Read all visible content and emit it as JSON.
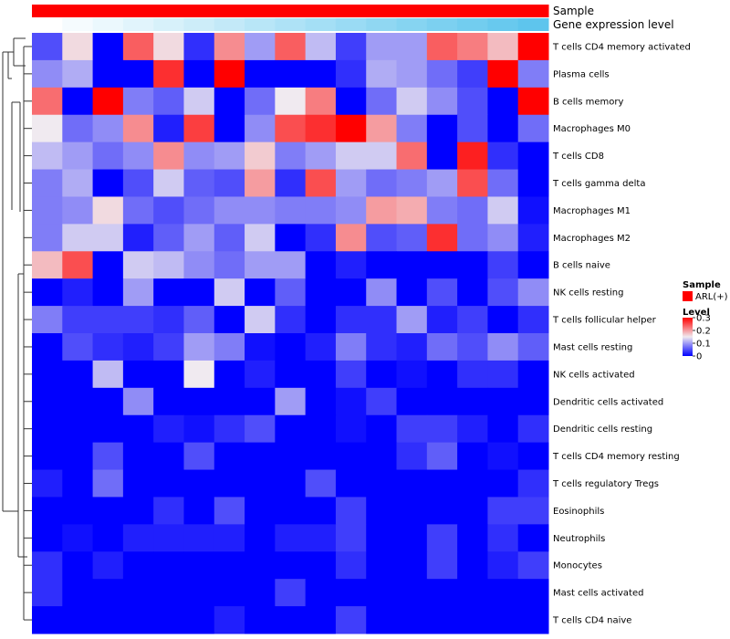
{
  "chart_data": {
    "type": "heatmap",
    "title": "",
    "xlabel": "",
    "ylabel": "",
    "annotations": [
      {
        "label": "Sample",
        "color": "#ff0000"
      },
      {
        "label": "Gene expression level",
        "gradient": [
          "#ffffff",
          "#57c3ec"
        ]
      }
    ],
    "rows": [
      "T cells CD4 memory activated",
      "Plasma cells",
      "B cells memory",
      "Macrophages M0",
      "T cells CD8",
      "T cells gamma delta",
      "Macrophages M1",
      "Macrophages M2",
      "B cells naive",
      "NK cells resting",
      "T cells follicular helper",
      "Mast cells resting",
      "NK cells activated",
      "Dendritic cells activated",
      "Dendritic cells resting",
      "T cells CD4 memory resting",
      "T cells regulatory  Tregs",
      "Eosinophils",
      "Neutrophils",
      "Monocytes",
      "Mast cells activated",
      "T cells CD4 naive"
    ],
    "n_columns": 17,
    "values": [
      [
        0.05,
        0.16,
        0.0,
        0.24,
        0.16,
        0.03,
        0.21,
        0.1,
        0.24,
        0.12,
        0.04,
        0.1,
        0.1,
        0.24,
        0.22,
        0.18,
        0.3
      ],
      [
        0.09,
        0.11,
        0.0,
        0.0,
        0.27,
        0.0,
        0.3,
        0.0,
        0.0,
        0.0,
        0.03,
        0.11,
        0.1,
        0.07,
        0.04,
        0.3,
        0.08
      ],
      [
        0.23,
        0.0,
        0.3,
        0.08,
        0.06,
        0.13,
        0.0,
        0.07,
        0.15,
        0.22,
        0.0,
        0.07,
        0.13,
        0.09,
        0.05,
        0.0,
        0.3
      ],
      [
        0.15,
        0.07,
        0.09,
        0.21,
        0.02,
        0.26,
        0.0,
        0.09,
        0.25,
        0.27,
        0.3,
        0.2,
        0.08,
        0.0,
        0.05,
        0.0,
        0.07
      ],
      [
        0.12,
        0.1,
        0.07,
        0.09,
        0.21,
        0.09,
        0.1,
        0.17,
        0.08,
        0.1,
        0.13,
        0.13,
        0.23,
        0.0,
        0.28,
        0.03,
        0.0
      ],
      [
        0.08,
        0.11,
        0.0,
        0.05,
        0.13,
        0.06,
        0.05,
        0.2,
        0.03,
        0.25,
        0.1,
        0.07,
        0.08,
        0.1,
        0.25,
        0.07,
        0.0
      ],
      [
        0.08,
        0.09,
        0.16,
        0.07,
        0.05,
        0.07,
        0.09,
        0.09,
        0.08,
        0.08,
        0.09,
        0.2,
        0.19,
        0.08,
        0.07,
        0.13,
        0.01
      ],
      [
        0.08,
        0.13,
        0.13,
        0.02,
        0.06,
        0.1,
        0.06,
        0.13,
        0.0,
        0.03,
        0.21,
        0.05,
        0.06,
        0.27,
        0.07,
        0.09,
        0.02
      ],
      [
        0.18,
        0.25,
        0.0,
        0.13,
        0.12,
        0.09,
        0.07,
        0.1,
        0.1,
        0.0,
        0.02,
        0.0,
        0.0,
        0.0,
        0.0,
        0.04,
        0.0
      ],
      [
        0.0,
        0.02,
        0.0,
        0.1,
        0.0,
        0.0,
        0.13,
        0.0,
        0.06,
        0.0,
        0.0,
        0.09,
        0.0,
        0.05,
        0.0,
        0.05,
        0.09
      ],
      [
        0.08,
        0.04,
        0.04,
        0.04,
        0.03,
        0.06,
        0.0,
        0.13,
        0.03,
        0.0,
        0.03,
        0.03,
        0.1,
        0.02,
        0.04,
        0.0,
        0.03
      ],
      [
        0.0,
        0.05,
        0.03,
        0.02,
        0.04,
        0.1,
        0.08,
        0.01,
        0.0,
        0.02,
        0.08,
        0.03,
        0.02,
        0.07,
        0.05,
        0.09,
        0.06
      ],
      [
        0.0,
        0.0,
        0.12,
        0.0,
        0.0,
        0.15,
        0.0,
        0.02,
        0.0,
        0.0,
        0.04,
        0.0,
        0.01,
        0.0,
        0.03,
        0.03,
        0.0
      ],
      [
        0.0,
        0.0,
        0.0,
        0.09,
        0.0,
        0.0,
        0.0,
        0.0,
        0.1,
        0.0,
        0.01,
        0.04,
        0.0,
        0.0,
        0.0,
        0.0,
        0.0
      ],
      [
        0.0,
        0.0,
        0.0,
        0.0,
        0.02,
        0.01,
        0.03,
        0.05,
        0.0,
        0.0,
        0.01,
        0.0,
        0.04,
        0.04,
        0.02,
        0.0,
        0.03
      ],
      [
        0.0,
        0.0,
        0.05,
        0.0,
        0.0,
        0.05,
        0.0,
        0.0,
        0.0,
        0.0,
        0.0,
        0.0,
        0.03,
        0.06,
        0.0,
        0.01,
        0.0
      ],
      [
        0.02,
        0.0,
        0.07,
        0.0,
        0.0,
        0.0,
        0.0,
        0.0,
        0.0,
        0.05,
        0.0,
        0.0,
        0.0,
        0.0,
        0.0,
        0.0,
        0.03
      ],
      [
        0.0,
        0.0,
        0.0,
        0.0,
        0.03,
        0.0,
        0.05,
        0.0,
        0.0,
        0.0,
        0.04,
        0.0,
        0.0,
        0.0,
        0.0,
        0.04,
        0.04
      ],
      [
        0.0,
        0.01,
        0.0,
        0.02,
        0.02,
        0.02,
        0.02,
        0.0,
        0.02,
        0.02,
        0.04,
        0.0,
        0.0,
        0.04,
        0.0,
        0.03,
        0.0
      ],
      [
        0.03,
        0.0,
        0.02,
        0.0,
        0.0,
        0.0,
        0.0,
        0.0,
        0.0,
        0.0,
        0.03,
        0.0,
        0.0,
        0.04,
        0.0,
        0.02,
        0.04
      ],
      [
        0.03,
        0.0,
        0.0,
        0.0,
        0.0,
        0.0,
        0.0,
        0.0,
        0.04,
        0.0,
        0.0,
        0.0,
        0.0,
        0.0,
        0.0,
        0.0,
        0.0
      ],
      [
        0.0,
        0.0,
        0.0,
        0.0,
        0.0,
        0.0,
        0.02,
        0.0,
        0.0,
        0.0,
        0.04,
        0.0,
        0.0,
        0.0,
        0.0,
        0.0,
        0.0
      ]
    ],
    "gene_expression_level": [
      0.0,
      0.06,
      0.12,
      0.18,
      0.24,
      0.3,
      0.36,
      0.42,
      0.48,
      0.54,
      0.6,
      0.66,
      0.72,
      0.78,
      0.84,
      0.9,
      0.96
    ],
    "color_scale": {
      "min": 0,
      "mid": 0.15,
      "max": 0.3,
      "colors": [
        "#0000ff",
        "#f0eaf0",
        "#ff0000"
      ]
    },
    "legend": {
      "sample_title": "Sample",
      "sample_items": [
        {
          "label": "ARL(+)",
          "color": "#ff0000"
        }
      ],
      "level_title": "Level",
      "level_ticks": [
        {
          "value": 0.3,
          "label": "0.3"
        },
        {
          "value": 0.2,
          "label": "0.2"
        },
        {
          "value": 0.1,
          "label": "0.1"
        },
        {
          "value": 0,
          "label": "0"
        }
      ],
      "placement": "right"
    }
  }
}
